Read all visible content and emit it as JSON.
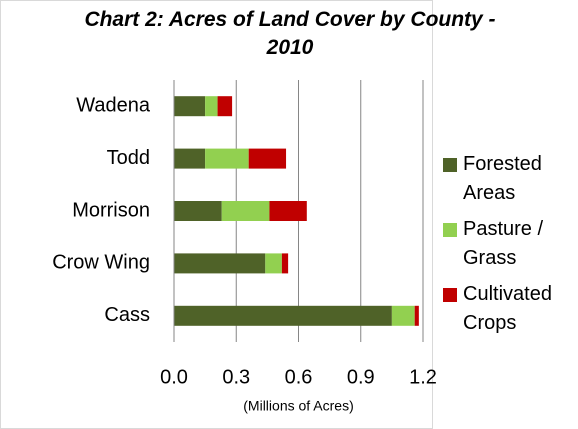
{
  "chart_data": {
    "type": "stacked_bar_horizontal",
    "title": "Chart 2: Acres of Land Cover by County - 2010",
    "x_label": "(Millions of Acres)",
    "categories": [
      "Wadena",
      "Todd",
      "Morrison",
      "Crow Wing",
      "Cass"
    ],
    "series": [
      {
        "name": "Forested Areas",
        "color": "#4f6228",
        "values": [
          0.15,
          0.15,
          0.23,
          0.44,
          1.05
        ]
      },
      {
        "name": "Pasture / Grass",
        "color": "#92d050",
        "values": [
          0.06,
          0.21,
          0.23,
          0.08,
          0.11
        ]
      },
      {
        "name": "Cultivated Crops",
        "color": "#c00000",
        "values": [
          0.07,
          0.18,
          0.18,
          0.03,
          0.02
        ]
      }
    ],
    "xlim": [
      0,
      1.2
    ],
    "xticks": [
      {
        "value": 0,
        "label": "0.0"
      },
      0.3,
      0.6,
      0.9,
      1.2
    ],
    "grid": true,
    "legend": "right"
  }
}
